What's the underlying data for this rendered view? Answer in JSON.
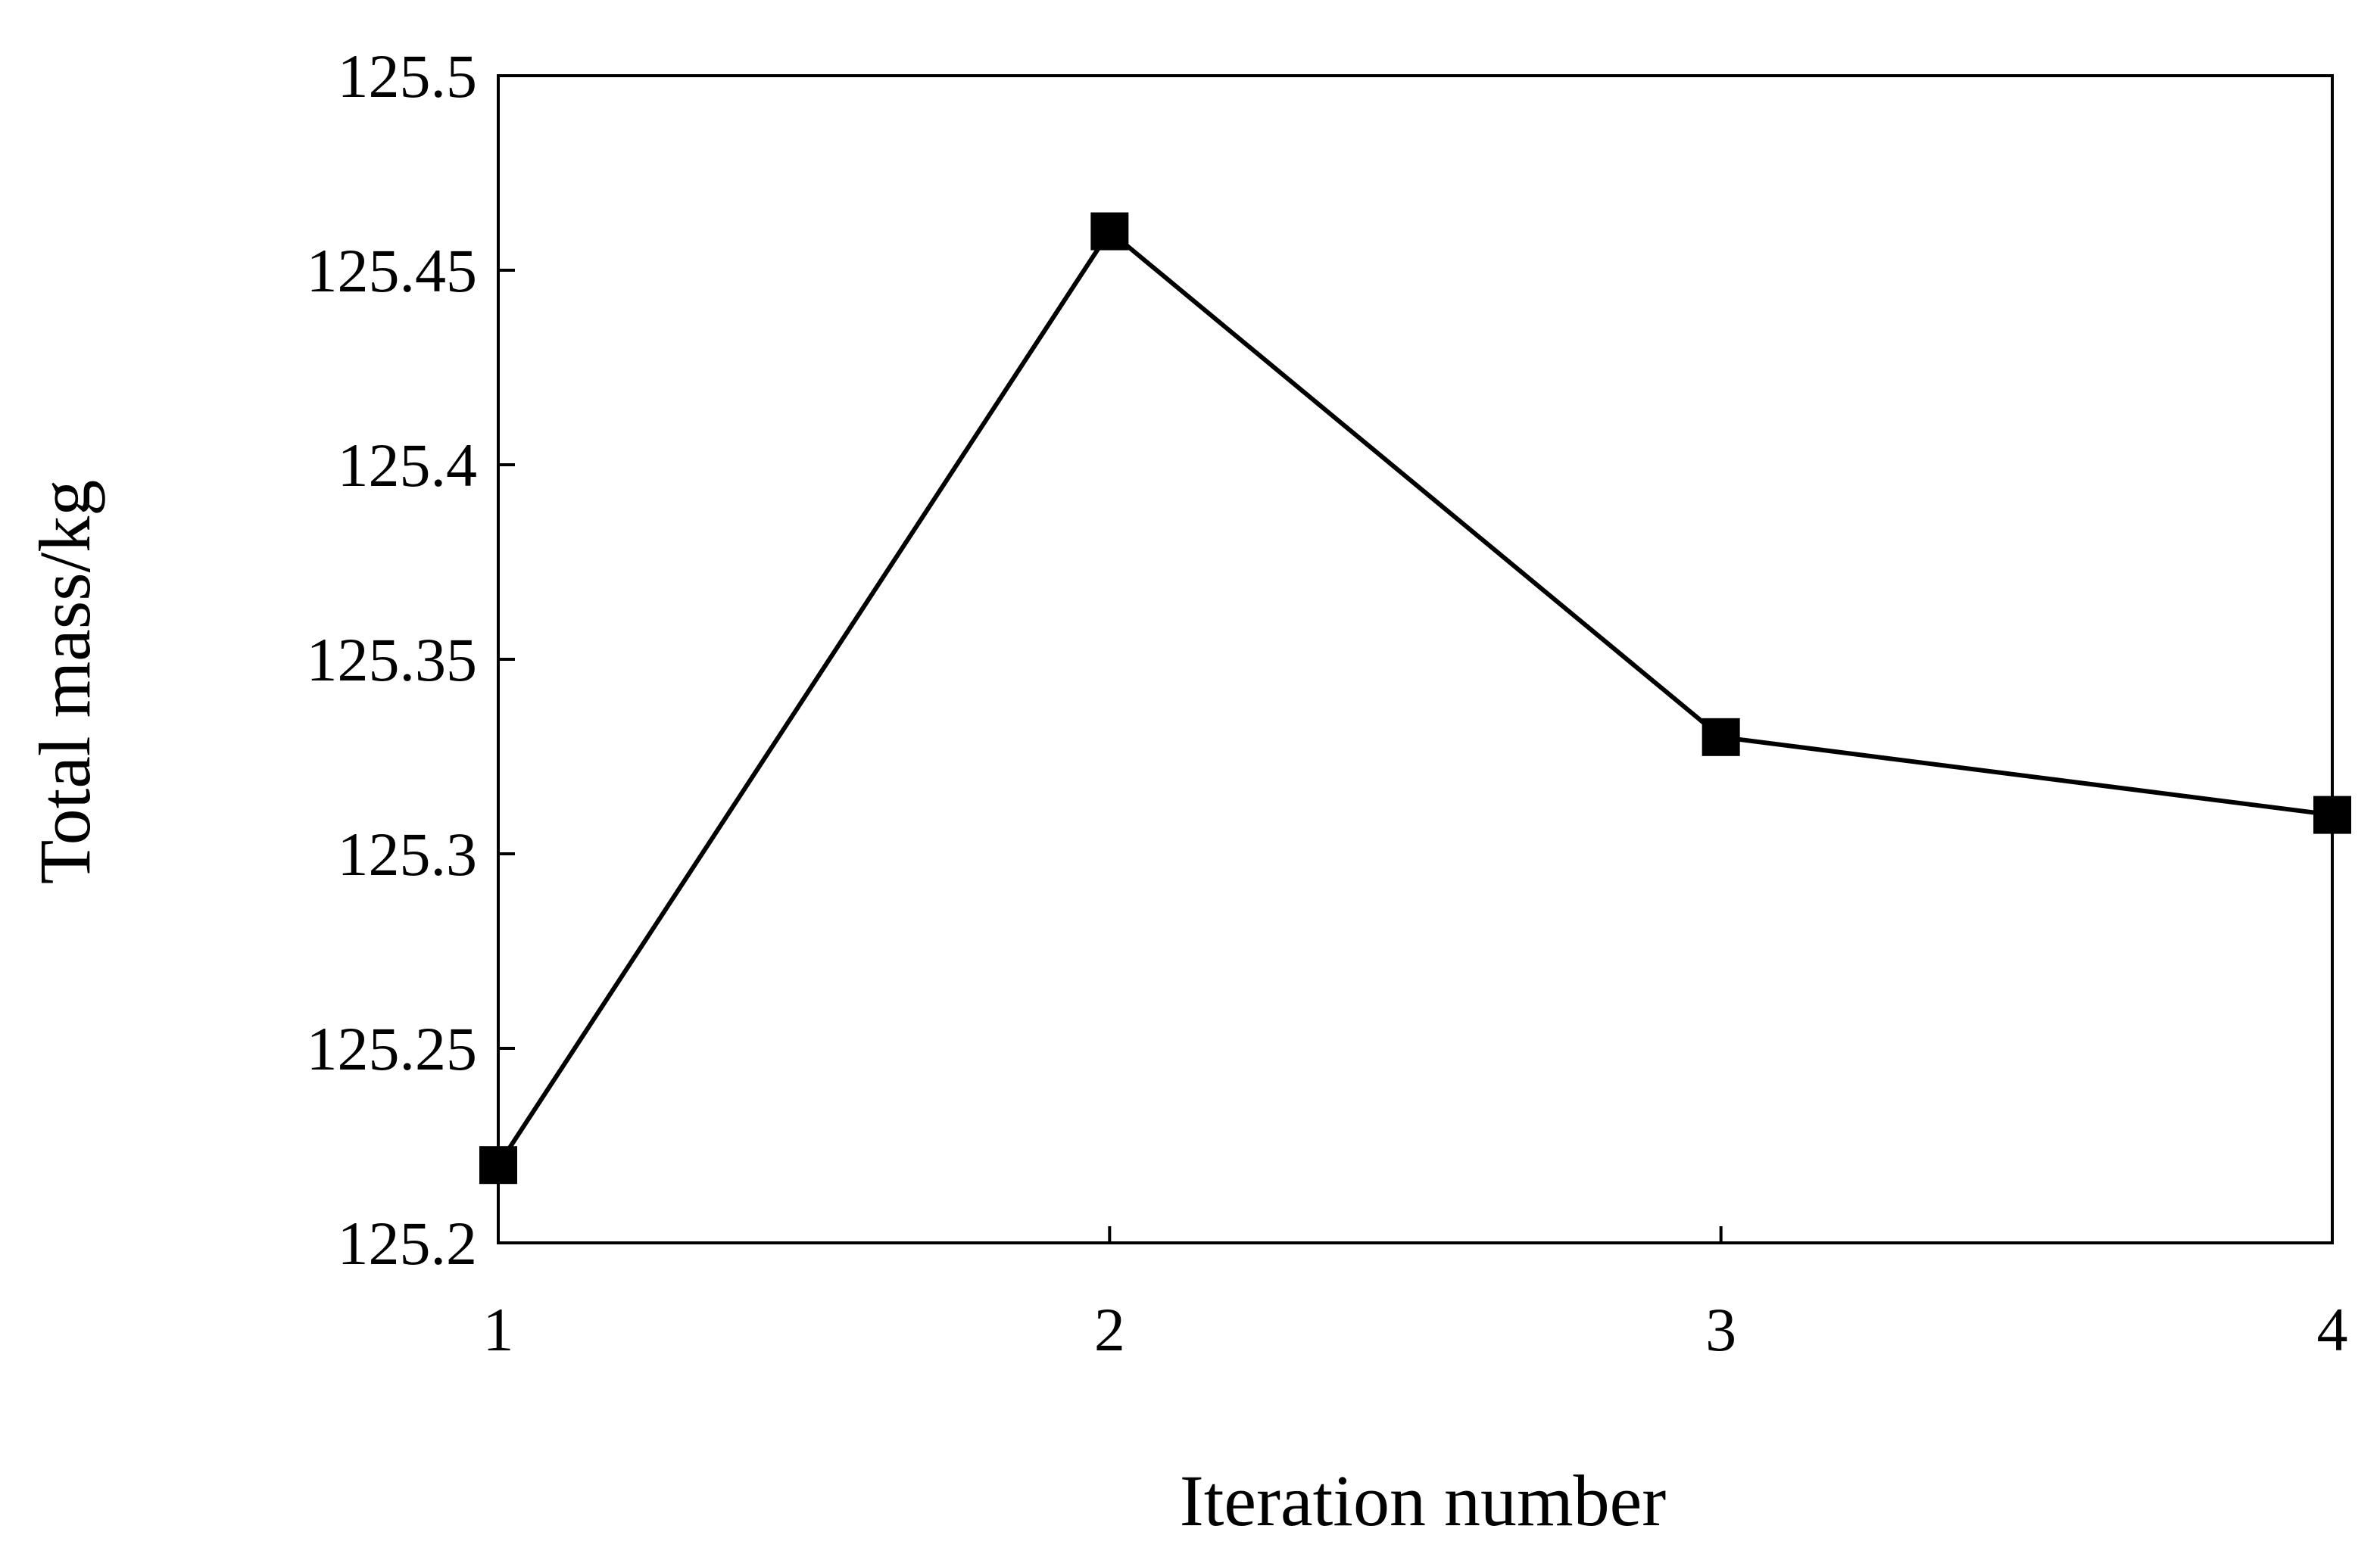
{
  "chart_data": {
    "type": "line",
    "title": "",
    "xlabel": "Iteration number",
    "ylabel": "Total mass/kg",
    "x": [
      1,
      2,
      3,
      4
    ],
    "x_tick_labels": [
      "1",
      "2",
      "3",
      "4"
    ],
    "xlim": [
      1,
      4
    ],
    "ylim": [
      125.2,
      125.5
    ],
    "y_ticks": [
      125.2,
      125.25,
      125.3,
      125.35,
      125.4,
      125.45,
      125.5
    ],
    "y_tick_labels": [
      "125.2",
      "125.25",
      "125.3",
      "125.35",
      "125.4",
      "125.45",
      "125.5"
    ],
    "grid": false,
    "legend": "none",
    "series": [
      {
        "values": [
          125.22,
          125.46,
          125.33,
          125.31
        ],
        "color": "#000000",
        "marker": "square"
      }
    ]
  }
}
